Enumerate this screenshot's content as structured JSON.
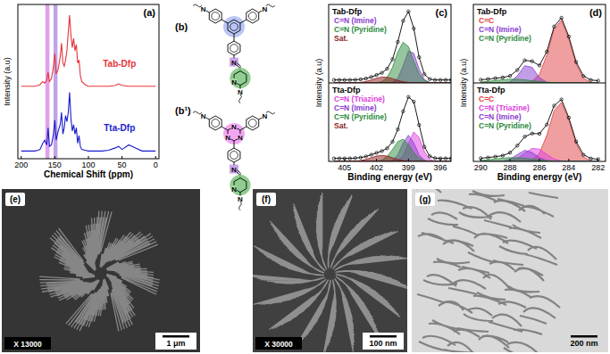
{
  "chart_data": [
    {
      "type": "line",
      "title": "(a)",
      "xlabel": "Chemical Shift (ppm)",
      "ylabel": "Intensity (a.u)",
      "xlim": [
        205,
        -5
      ],
      "xticks": [
        200,
        150,
        100,
        50,
        0
      ],
      "ylim": [
        0,
        100
      ],
      "tick_labels": "x",
      "highlights": [
        {
          "from": 158,
          "to": 164,
          "color": "#dd8fe6"
        },
        {
          "from": 146,
          "to": 152,
          "color": "#b694e4"
        }
      ],
      "series": [
        {
          "name": "Tab-Dfp",
          "color": "#e8343a",
          "x": [
            200,
            190,
            180,
            175,
            172,
            170,
            168,
            165,
            162,
            160,
            158,
            155,
            152,
            150,
            148,
            145,
            142,
            140,
            138,
            136,
            134,
            132,
            130,
            128,
            126,
            124,
            122,
            120,
            118,
            116,
            114,
            112,
            110,
            105,
            100,
            90,
            80,
            70,
            60,
            55,
            50,
            40,
            30,
            20,
            10,
            0
          ],
          "values": [
            47,
            47,
            47,
            47.5,
            48,
            49,
            50,
            49,
            51,
            56,
            50,
            52,
            60,
            68,
            55,
            58,
            66,
            75,
            62,
            60,
            64,
            70,
            82,
            93,
            80,
            72,
            78,
            70,
            74,
            62,
            64,
            54,
            50,
            48,
            47,
            47,
            47,
            47,
            47.5,
            48.5,
            47.5,
            47,
            47,
            47,
            47,
            47
          ]
        },
        {
          "name": "Tta-Dfp",
          "color": "#1a1ad0",
          "x": [
            200,
            190,
            180,
            175,
            172,
            170,
            168,
            165,
            162,
            160,
            158,
            155,
            152,
            150,
            148,
            145,
            142,
            140,
            138,
            136,
            134,
            132,
            130,
            128,
            126,
            124,
            122,
            120,
            118,
            116,
            114,
            112,
            110,
            105,
            100,
            90,
            80,
            70,
            60,
            55,
            50,
            40,
            30,
            20,
            10,
            0
          ],
          "values": [
            5,
            5,
            5,
            5.5,
            6,
            8,
            10,
            12,
            9,
            20,
            8,
            9,
            16,
            25,
            12,
            18,
            22,
            30,
            16,
            20,
            28,
            24,
            30,
            43,
            26,
            18,
            22,
            16,
            20,
            10,
            15,
            8,
            6,
            5.5,
            5,
            5,
            5,
            5.5,
            7,
            8,
            6,
            9,
            7,
            5,
            5,
            5
          ]
        }
      ]
    },
    {
      "type": "line",
      "title": "(c)",
      "xlabel": "Binding energy (eV)",
      "ylabel": "Intensity (a.u)",
      "xlim": [
        406.5,
        395
      ],
      "xticks": [
        405,
        402,
        399,
        396
      ],
      "tick_labels": "x",
      "subplots": [
        {
          "title": "Tab-Dfp",
          "ylim": [
            0,
            105
          ],
          "x": [
            406,
            405.5,
            405,
            404.5,
            404,
            403.5,
            403,
            402.5,
            402,
            401.5,
            401,
            400.5,
            400,
            399.5,
            399,
            398.5,
            398,
            397.5,
            397,
            396.5,
            396,
            395.5,
            395
          ],
          "series": [
            {
              "color": "#000000",
              "marker": "circle",
              "values": [
                4,
                4,
                4,
                4,
                4.2,
                4.7,
                5.9,
                7.9,
                10.6,
                13.5,
                19,
                31.6,
                55,
                83,
                95.7,
                72.9,
                34.4,
                11.6,
                5.1,
                4,
                4,
                4,
                4
              ]
            },
            {
              "name": "C=N (Imine)",
              "color": "#8a3ccf",
              "values": [
                0,
                0,
                0,
                0,
                0,
                0,
                0,
                0,
                0,
                0,
                0,
                0.8,
                6.1,
                22.8,
                42.6,
                39.7,
                18.5,
                4.3,
                0.5,
                0,
                0,
                0,
                0
              ]
            },
            {
              "name": "C=N (Pyridine)",
              "color": "#2e8b3e",
              "values": [
                0,
                0,
                0,
                0,
                0,
                0,
                0,
                0,
                0.3,
                1.7,
                7.4,
                21,
                41.5,
                54.6,
                48.5,
                29.2,
                11.9,
                3.3,
                0.6,
                0,
                0,
                0,
                0
              ]
            },
            {
              "name": "Sat.",
              "color": "#8b1a1a",
              "values": [
                0,
                0,
                0,
                0,
                0.2,
                0.7,
                1.9,
                3.9,
                6.3,
                7.8,
                7.6,
                5.8,
                3.4,
                1.6,
                0.6,
                0,
                0,
                0,
                0,
                0,
                0,
                0,
                0
              ]
            }
          ]
        },
        {
          "title": "Tta-Dfp",
          "ylim": [
            0,
            105
          ],
          "x": [
            406,
            405.5,
            405,
            404.5,
            404,
            403.5,
            403,
            402.5,
            402,
            401.5,
            401,
            400.5,
            400,
            399.5,
            399,
            398.5,
            398,
            397.5,
            397,
            396.5,
            396,
            395.5,
            395
          ],
          "series": [
            {
              "color": "#000000",
              "marker": "circle",
              "values": [
                4,
                4,
                4,
                4,
                4.4,
                5.1,
                6.6,
                8.9,
                11.4,
                13.8,
                17.6,
                26.3,
                42.8,
                67,
                86.3,
                79.9,
                48.8,
                19.5,
                6.9,
                4.3,
                4,
                4,
                4
              ]
            },
            {
              "name": "C=N (Triazine)",
              "color": "#e040e0",
              "values": [
                0,
                0,
                0,
                0,
                0,
                0,
                0,
                0,
                0,
                0,
                0,
                0,
                1.1,
                7.4,
                24.3,
                39.5,
                32,
                13,
                2.6,
                0.3,
                0,
                0,
                0
              ]
            },
            {
              "name": "C=N (Imine)",
              "color": "#8a3ccf",
              "values": [
                0,
                0,
                0,
                0,
                0,
                0,
                0,
                0,
                0,
                0,
                0,
                1.5,
                8.7,
                24.7,
                35,
                24.7,
                8.7,
                1.5,
                0.1,
                0,
                0,
                0,
                0
              ]
            },
            {
              "name": "C=N (Pyridine)",
              "color": "#2e8b3e",
              "values": [
                0,
                0,
                0,
                0,
                0,
                0,
                0,
                0,
                0.3,
                1.8,
                6.5,
                15.9,
                26.4,
                29.8,
                22.6,
                11.7,
                4.1,
                1,
                0.2,
                0,
                0,
                0,
                0
              ]
            },
            {
              "name": "Sat.",
              "color": "#8b1a1a",
              "values": [
                0,
                0,
                0,
                0,
                0.4,
                1.1,
                2.6,
                4.9,
                7.1,
                8,
                7.1,
                4.9,
                2.6,
                1.1,
                0.4,
                0,
                0,
                0,
                0,
                0,
                0,
                0,
                0
              ]
            }
          ]
        }
      ]
    },
    {
      "type": "line",
      "title": "(d)",
      "xlabel": "Binding energy (eV)",
      "ylabel": "Intensity (a.u)",
      "xlim": [
        290.5,
        281.5
      ],
      "xticks": [
        290,
        288,
        286,
        284,
        282
      ],
      "tick_labels": "x",
      "subplots": [
        {
          "title": "Tab-Dfp",
          "ylim": [
            0,
            105
          ],
          "x": [
            290,
            289.5,
            289,
            288.5,
            288,
            287.5,
            287,
            286.5,
            286,
            285.5,
            285,
            284.5,
            284,
            283.5,
            283,
            282.5,
            282
          ],
          "series": [
            {
              "color": "#000000",
              "marker": "circle",
              "values": [
                4.2,
                5.1,
                6.3,
                7.3,
                9.4,
                17.3,
                30.3,
                29,
                23.4,
                41.9,
                75.5,
                87.2,
                62,
                28,
                9.2,
                3.9,
                3
              ]
            },
            {
              "name": "C=C",
              "color": "#e04040",
              "values": [
                0,
                0,
                0,
                0,
                0,
                0,
                0.2,
                2.1,
                11.5,
                37,
                72,
                84,
                59,
                25,
                6.2,
                0.9,
                0
              ]
            },
            {
              "name": "C=N (Imine)",
              "color": "#8a3ccf",
              "values": [
                0,
                0,
                0,
                0,
                1.4,
                9.4,
                23,
                20.9,
                7,
                0.9,
                0,
                0,
                0,
                0,
                0,
                0,
                0
              ]
            },
            {
              "name": "C=N (Pyridine)",
              "color": "#2e8b3e",
              "values": [
                1.2,
                2.1,
                3.3,
                4.3,
                5,
                4.9,
                4.1,
                3,
                1.9,
                1,
                0.5,
                0.2,
                0,
                0,
                0,
                0,
                0
              ]
            }
          ]
        },
        {
          "title": "Tta-Dfp",
          "ylim": [
            0,
            105
          ],
          "x": [
            290,
            289.5,
            289,
            288.5,
            288,
            287.5,
            287,
            286.5,
            286,
            285.5,
            285,
            284.5,
            284,
            283.5,
            283,
            282.5,
            282
          ],
          "series": [
            {
              "color": "#000000",
              "marker": "circle",
              "values": [
                4.2,
                5.1,
                6.3,
                7.7,
                11.7,
                21.2,
                33.1,
                37.3,
                37,
                49.2,
                74.6,
                82.9,
                58.5,
                26.5,
                8.8,
                3.8,
                3
              ]
            },
            {
              "name": "C=C",
              "color": "#e04040",
              "values": [
                0,
                0,
                0,
                0,
                0,
                0,
                0.2,
                2,
                10.8,
                34.8,
                67.8,
                79,
                55.5,
                23.5,
                5.8,
                0.8,
                0
              ]
            },
            {
              "name": "C=N (Triazine)",
              "color": "#e040e0",
              "values": [
                0,
                0,
                0,
                0,
                0.9,
                4.1,
                11,
                17.3,
                16.4,
                9.4,
                3.2,
                0.7,
                0,
                0,
                0,
                0,
                0
              ]
            },
            {
              "name": "C=N (Imine)",
              "color": "#8a3ccf",
              "values": [
                0,
                0,
                0,
                0.4,
                2.8,
                9.2,
                14.8,
                12,
                4.9,
                1,
                0.1,
                0,
                0,
                0,
                0,
                0,
                0
              ]
            },
            {
              "name": "C=N (Pyridine)",
              "color": "#2e8b3e",
              "values": [
                1.2,
                2.1,
                3.3,
                4.3,
                5,
                4.9,
                4.1,
                3,
                1.9,
                1,
                0.5,
                0.2,
                0,
                0,
                0,
                0,
                0
              ]
            }
          ]
        }
      ]
    }
  ],
  "structures": [
    {
      "label": "(b)",
      "end_atoms": [
        "N",
        "N",
        "N"
      ],
      "imine_atom": "N",
      "pyridine_atom": "N"
    },
    {
      "label": "(b¹)",
      "end_atoms": [
        "N",
        "N",
        "N"
      ],
      "imine_atom": "N",
      "pyridine_atom": "N",
      "core_atoms": [
        "N",
        "N",
        "N"
      ]
    }
  ],
  "images": [
    {
      "label": "(e)",
      "magnification": "X 13000",
      "scale_bar": "1 μm"
    },
    {
      "label": "(f)",
      "magnification": "X 30000",
      "scale_bar": "100 nm"
    },
    {
      "label": "(g)",
      "scale_bar": "200 nm"
    }
  ]
}
